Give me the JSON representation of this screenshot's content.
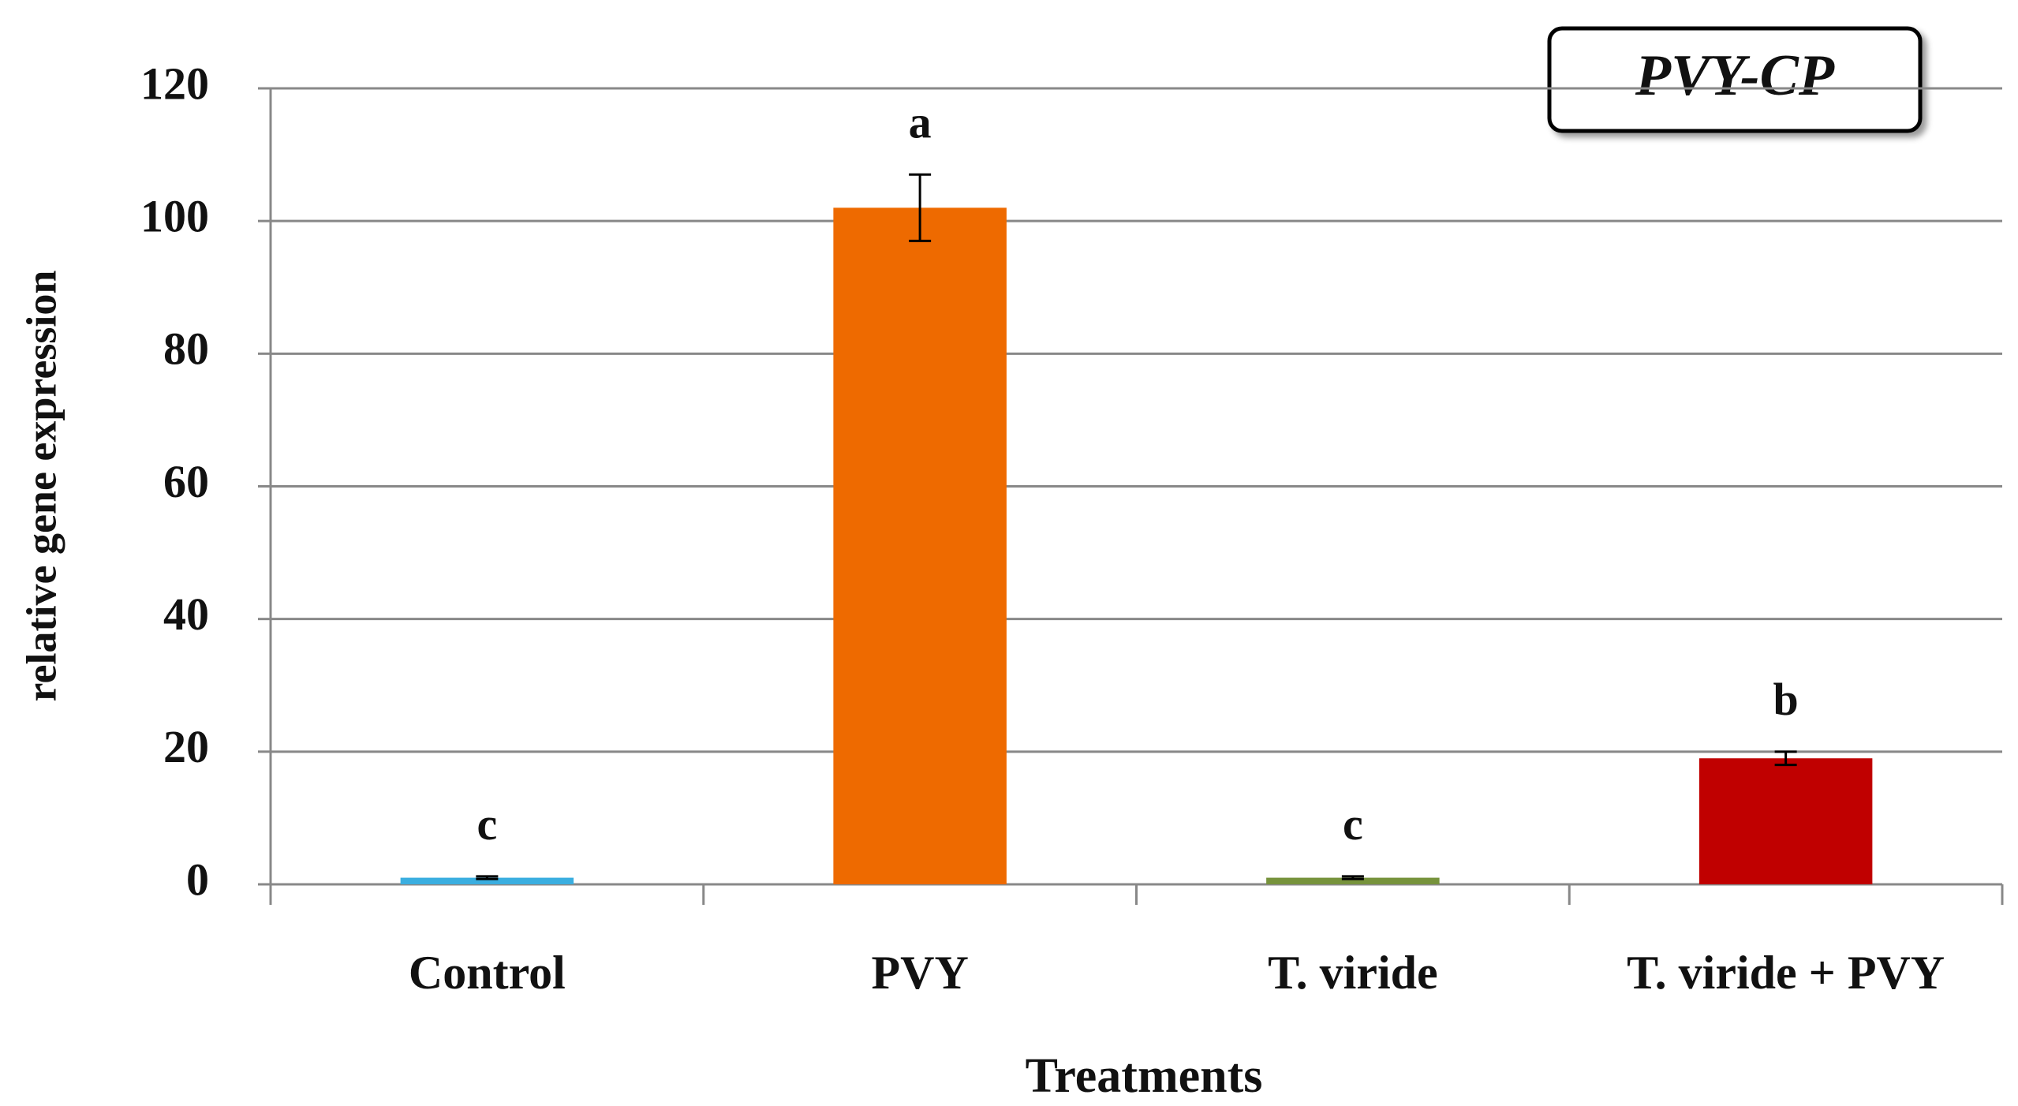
{
  "chart_data": {
    "type": "bar",
    "title": "PVY-CP",
    "x_label": "Treatments",
    "y_label": "relative gene expression",
    "categories": [
      "Control",
      "PVY",
      "T. viride",
      "T. viride + PVY"
    ],
    "values": [
      1,
      102,
      1,
      19
    ],
    "errors": [
      0.2,
      5,
      0.2,
      1
    ],
    "letters": [
      "c",
      "a",
      "c",
      "b"
    ],
    "colors": [
      "#3aaee0",
      "#ee6a00",
      "#77933c",
      "#c00000"
    ],
    "ylim": [
      0,
      120
    ],
    "yticks": [
      0,
      20,
      40,
      60,
      80,
      100,
      120
    ],
    "grid": true
  }
}
